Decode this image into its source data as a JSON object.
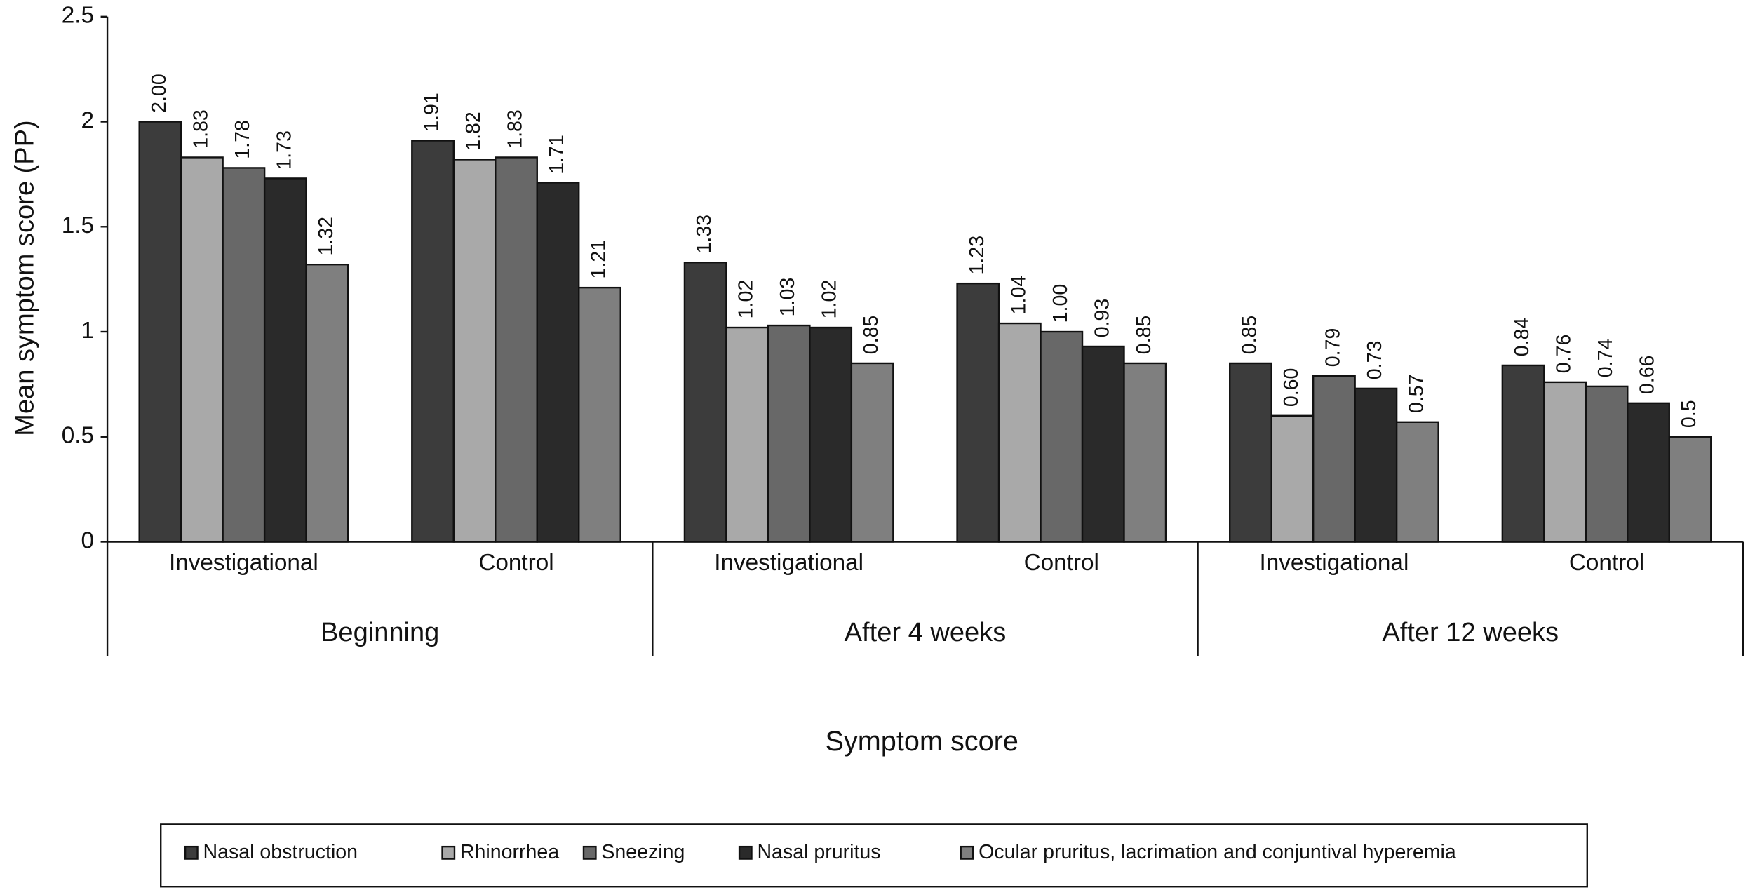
{
  "chart_data": {
    "type": "bar",
    "y_label": "Mean symptom score (PP)",
    "x_label": "Symptom score",
    "categories": [
      "Investigational",
      "Control",
      "Investigational",
      "Control",
      "Investigational",
      "Control"
    ],
    "groups": [
      "Beginning",
      "After 4 weeks",
      "After 12 weeks"
    ],
    "ylim": [
      0,
      2.5
    ],
    "yticks": [
      0,
      0.5,
      1,
      1.5,
      2,
      2.5
    ],
    "series": [
      {
        "name": "Nasal obstruction",
        "color": "#3c3c3c",
        "values": [
          2.0,
          1.91,
          1.33,
          1.23,
          0.85,
          0.84
        ],
        "value_labels": [
          "2.00",
          "1.91",
          "1.33",
          "1.23",
          "0.85",
          "0.84"
        ]
      },
      {
        "name": "Rhinorrhea",
        "color": "#a9a9a9",
        "values": [
          1.83,
          1.82,
          1.02,
          1.04,
          0.6,
          0.76
        ],
        "value_labels": [
          "1.83",
          "1.82",
          "1.02",
          "1.04",
          "0.60",
          "0.76"
        ]
      },
      {
        "name": "Sneezing",
        "color": "#686868",
        "values": [
          1.78,
          1.83,
          1.03,
          1.0,
          0.79,
          0.74
        ],
        "value_labels": [
          "1.78",
          "1.83",
          "1.03",
          "1.00",
          "0.79",
          "0.74"
        ]
      },
      {
        "name": "Nasal pruritus",
        "color": "#2a2a2a",
        "values": [
          1.73,
          1.71,
          1.02,
          0.93,
          0.73,
          0.66
        ],
        "value_labels": [
          "1.73",
          "1.71",
          "1.02",
          "0.93",
          "0.73",
          "0.66"
        ]
      },
      {
        "name": "Ocular pruritus, lacrimation and conjuntival hyperemia",
        "color": "#7f7f7f",
        "values": [
          1.32,
          1.21,
          0.85,
          0.85,
          0.57,
          0.5
        ],
        "value_labels": [
          "1.32",
          "1.21",
          "0.85",
          "0.85",
          "0.57",
          "0.5"
        ]
      }
    ]
  }
}
